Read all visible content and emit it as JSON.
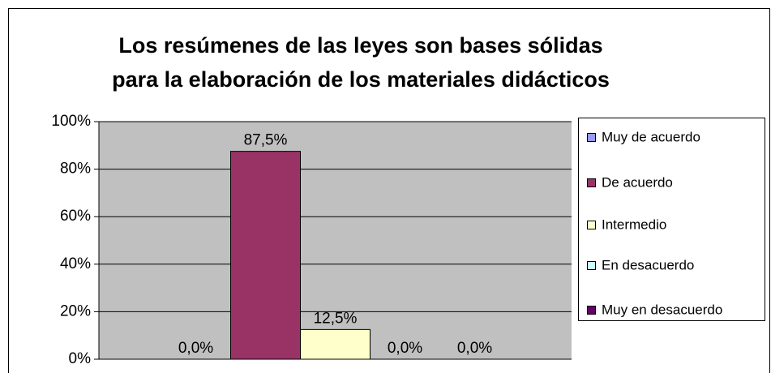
{
  "chart_data": {
    "type": "bar",
    "title": [
      "Los resúmenes de las leyes son bases sólidas",
      "para la elaboración de los materiales didácticos"
    ],
    "categories": [
      null
    ],
    "series": [
      {
        "name": "Muy de acuerdo",
        "color": "#9999ff",
        "values": [
          0
        ],
        "value_labels": [
          "0,0%"
        ]
      },
      {
        "name": "De acuerdo",
        "color": "#993366",
        "values": [
          87.5
        ],
        "value_labels": [
          "87,5%"
        ]
      },
      {
        "name": "Intermedio",
        "color": "#ffffcc",
        "values": [
          12.5
        ],
        "value_labels": [
          "12,5%"
        ]
      },
      {
        "name": "En desacuerdo",
        "color": "#ccffff",
        "values": [
          0
        ],
        "value_labels": [
          "0,0%"
        ]
      },
      {
        "name": "Muy en desacuerdo",
        "color": "#660066",
        "values": [
          0
        ],
        "value_labels": [
          "0,0%"
        ]
      }
    ],
    "ylim": [
      0,
      100
    ],
    "yticks": [
      {
        "value": 0,
        "label": "0%"
      },
      {
        "value": 20,
        "label": "20%"
      },
      {
        "value": 40,
        "label": "40%"
      },
      {
        "value": 60,
        "label": "60%"
      },
      {
        "value": 80,
        "label": "80%"
      },
      {
        "value": 100,
        "label": "100%"
      }
    ],
    "grid": true,
    "legend": "right"
  }
}
